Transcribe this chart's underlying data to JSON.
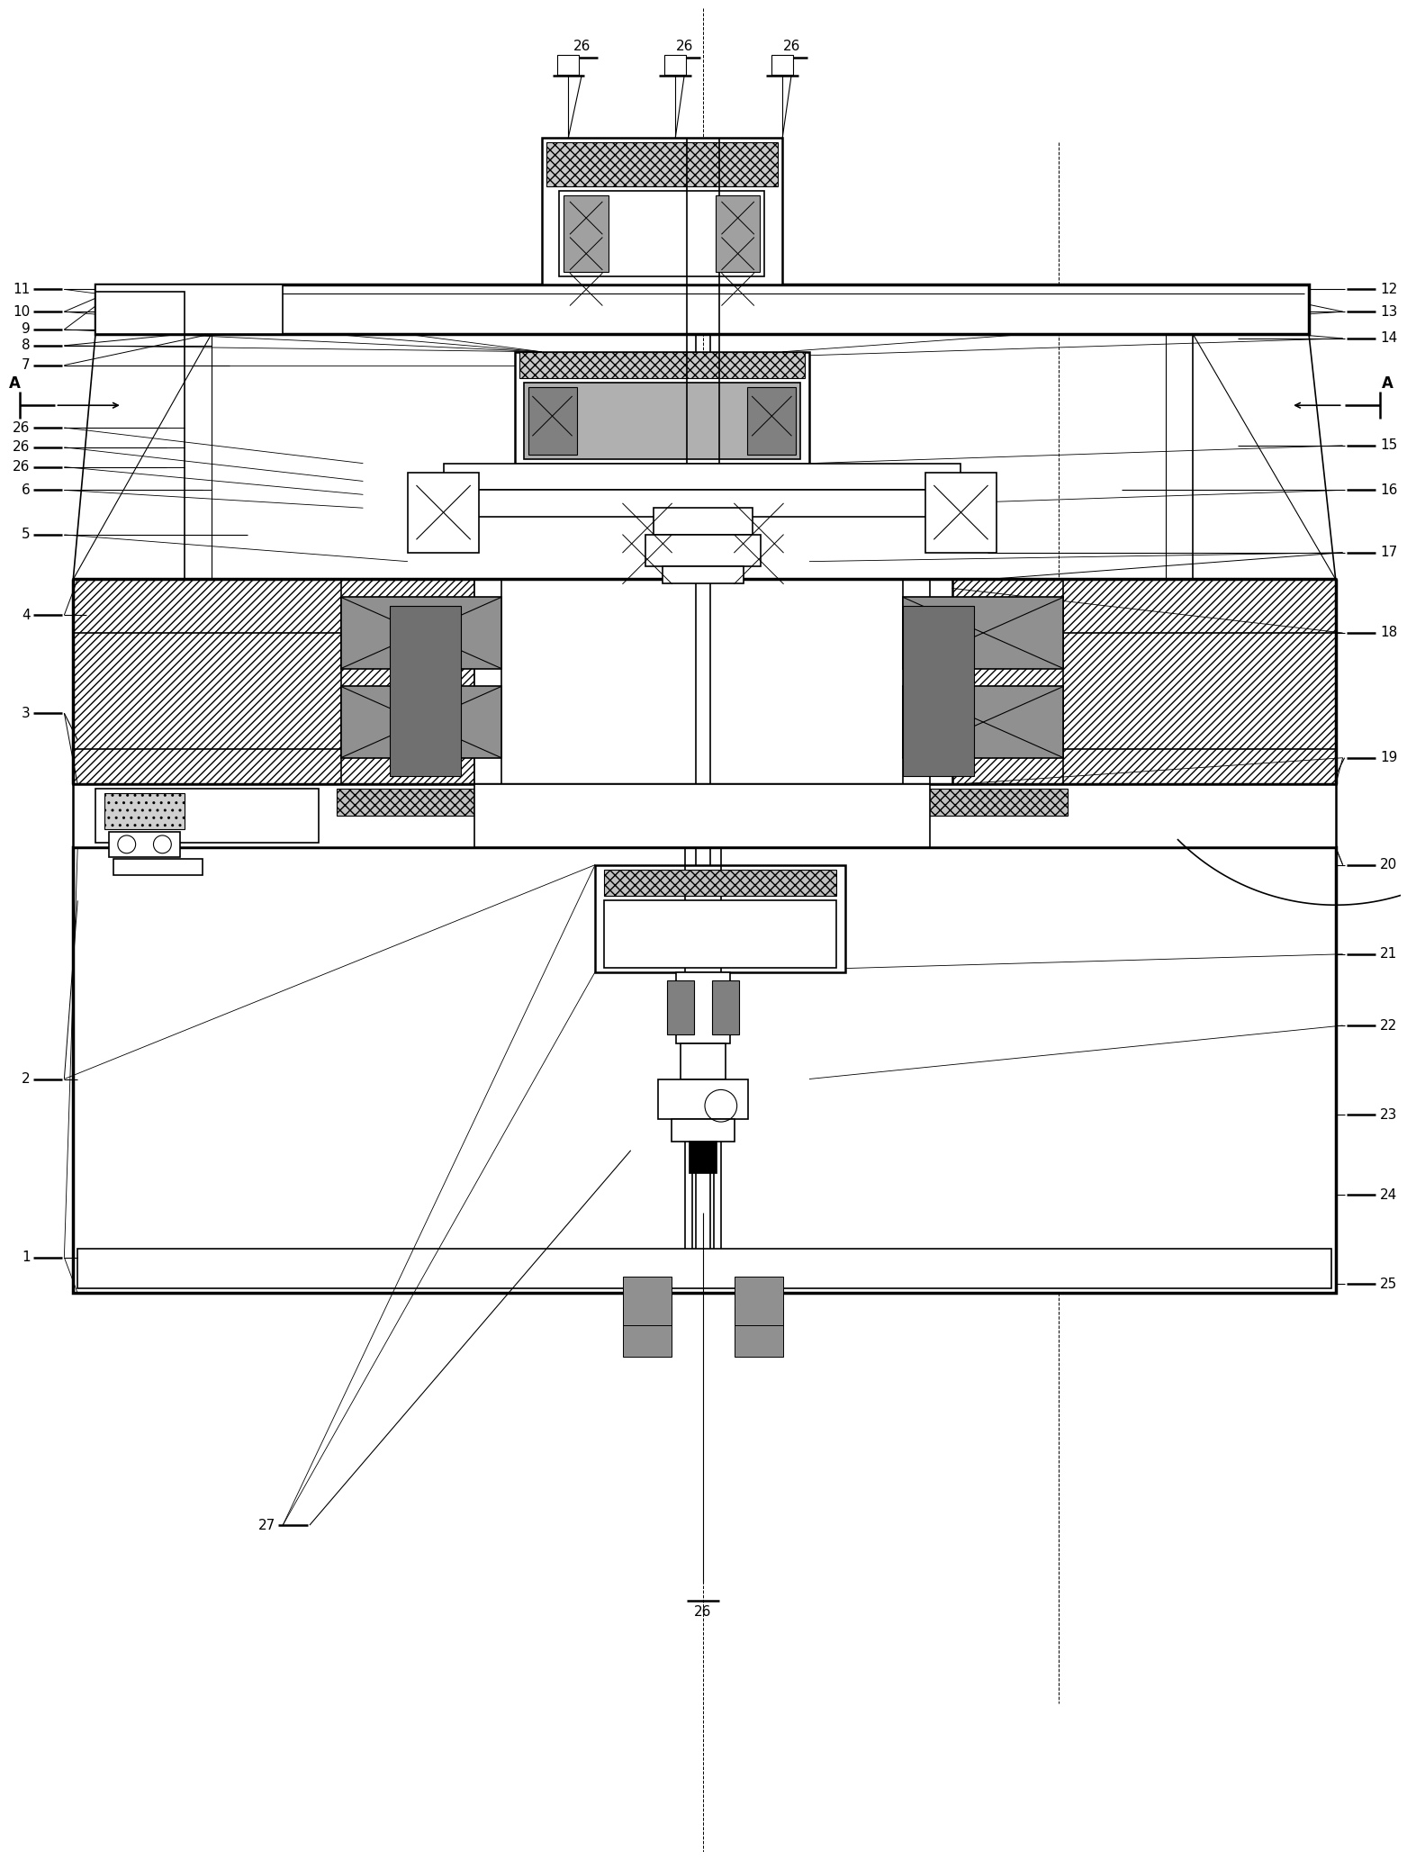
{
  "bg_color": "#ffffff",
  "line_color": "#000000",
  "figsize": [
    15.63,
    20.66
  ],
  "dpi": 100
}
